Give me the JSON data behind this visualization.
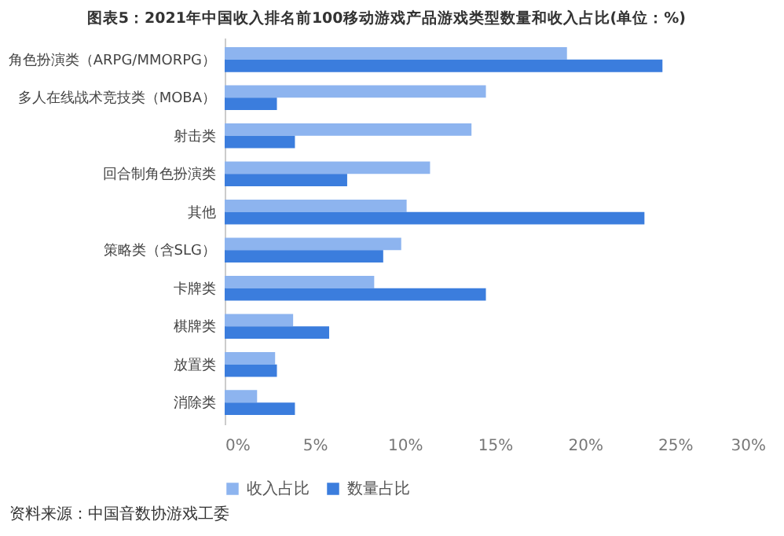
{
  "chart_data": {
    "type": "bar",
    "orientation": "horizontal",
    "title": "图表5：2021年中国收入排名前100移动游戏产品游戏类型数量和收入占比(单位：%)",
    "categories": [
      "角色扮演类（ARPG/MMORPG）",
      "多人在线战术竞技类（MOBA）",
      "射击类",
      "回合制角色扮演类",
      "其他",
      "策略类（含SLG）",
      "卡牌类",
      "棋牌类",
      "放置类",
      "消除类"
    ],
    "series": [
      {
        "name": "收入占比",
        "color": "#8db4ef",
        "values": [
          19.0,
          14.5,
          13.7,
          11.4,
          10.1,
          9.8,
          8.3,
          3.8,
          2.8,
          1.8
        ]
      },
      {
        "name": "数量占比",
        "color": "#3b7ddd",
        "values": [
          24.3,
          2.9,
          3.9,
          6.8,
          23.3,
          8.8,
          14.5,
          5.8,
          2.9,
          3.9
        ]
      }
    ],
    "xlim": [
      0,
      30
    ],
    "xticks": [
      {
        "value": 0,
        "label": "0%"
      },
      {
        "value": 5,
        "label": "5%"
      },
      {
        "value": 10,
        "label": "10%"
      },
      {
        "value": 15,
        "label": "15%"
      },
      {
        "value": 20,
        "label": "20%"
      },
      {
        "value": 25,
        "label": "25%"
      },
      {
        "value": 30,
        "label": "30%"
      }
    ],
    "legend": "bottom",
    "grid": false,
    "annotations": [
      "资料来源：中国音数协游戏工委"
    ]
  }
}
